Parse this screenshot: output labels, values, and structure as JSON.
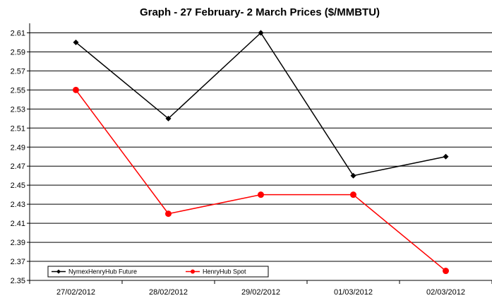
{
  "chart_data": {
    "type": "line",
    "title": "Graph - 27 February- 2 March  Prices ($/MMBTU)",
    "xlabel": "",
    "ylabel": "",
    "categories": [
      "27/02/2012",
      "28/02/2012",
      "29/02/2012",
      "01/03/2012",
      "02/03/2012"
    ],
    "ylim": [
      2.35,
      2.62
    ],
    "yticks": [
      "2.35",
      "2.37",
      "2.39",
      "2.41",
      "2.43",
      "2.45",
      "2.47",
      "2.49",
      "2.51",
      "2.53",
      "2.55",
      "2.57",
      "2.59",
      "2.61"
    ],
    "grid": true,
    "legend": "bottom-left",
    "series": [
      {
        "name": "NymexHenryHub Future",
        "color": "#000000",
        "marker": "diamond",
        "values": [
          2.6,
          2.52,
          2.61,
          2.46,
          2.48
        ]
      },
      {
        "name": "HenryHub Spot",
        "color": "#ff0000",
        "marker": "circle",
        "values": [
          2.55,
          2.42,
          2.44,
          2.44,
          2.36
        ]
      }
    ]
  }
}
